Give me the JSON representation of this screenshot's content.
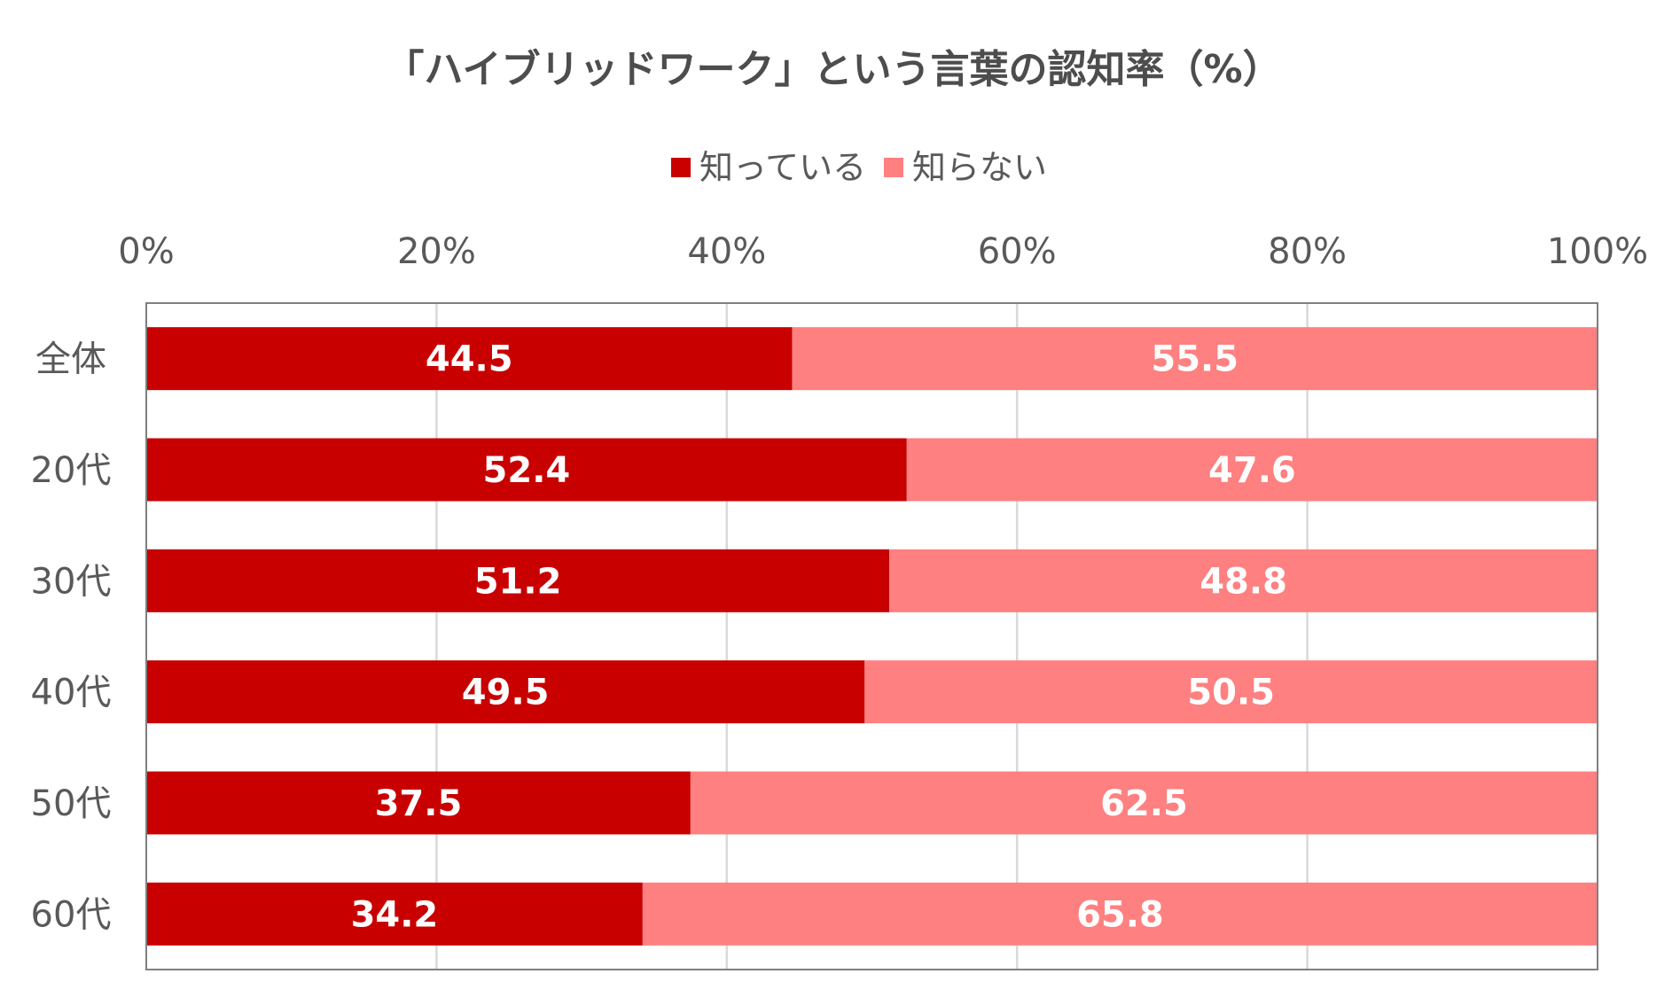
{
  "chart_data": {
    "type": "bar",
    "orientation": "horizontal",
    "stacked": true,
    "title": "「ハイブリッドワーク」という言葉の認知率（%）",
    "categories": [
      "全体",
      "20代",
      "30代",
      "40代",
      "50代",
      "60代"
    ],
    "series": [
      {
        "name": "知っている",
        "color": "#c80000",
        "values": [
          44.5,
          52.4,
          51.2,
          49.5,
          37.5,
          34.2
        ]
      },
      {
        "name": "知らない",
        "color": "#ff8080",
        "values": [
          55.5,
          47.6,
          48.8,
          50.5,
          62.5,
          65.8
        ]
      }
    ],
    "value_labels": [
      [
        "44.5",
        "52.4",
        "51.2",
        "49.5",
        "37.5",
        "34.2"
      ],
      [
        "55.5",
        "47.6",
        "48.8",
        "50.5",
        "62.5",
        "65.8"
      ]
    ],
    "xticks": [
      "0%",
      "20%",
      "40%",
      "60%",
      "80%",
      "100%"
    ],
    "xlim": [
      0,
      100
    ],
    "xlabel": "",
    "ylabel": "",
    "grid": true,
    "legend": "top-center",
    "axis_position": "top"
  }
}
